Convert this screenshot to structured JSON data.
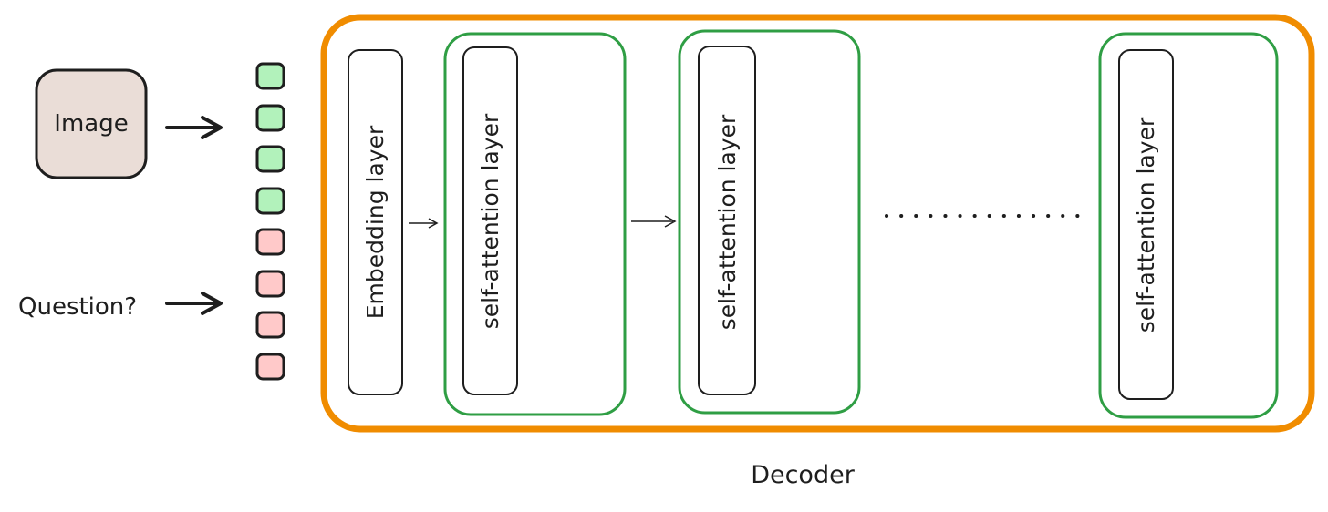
{
  "inputs": {
    "image_label": "Image",
    "question_label": "Question?"
  },
  "tokens": {
    "image_count": 4,
    "question_count": 4,
    "image_token_color": "#b2f2bb",
    "question_token_color": "#ffc9c9"
  },
  "decoder": {
    "label": "Decoder",
    "border_color": "#f08c00",
    "embedding_label": "Embedding layer",
    "block_border_color": "#2f9e44",
    "blocks": [
      {
        "label": "self-attention layer"
      },
      {
        "label": "self-attention layer"
      },
      {
        "label": "self-attention layer"
      }
    ]
  },
  "colors": {
    "image_box_fill": "#eaddd7",
    "stroke": "#1e1e1e"
  }
}
